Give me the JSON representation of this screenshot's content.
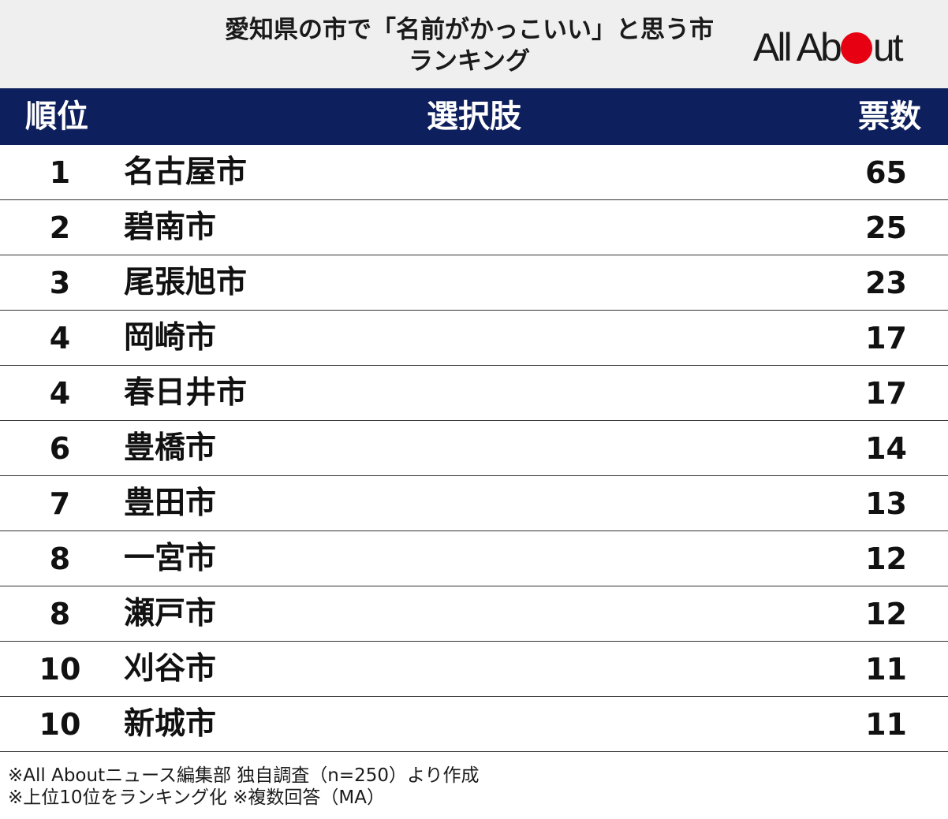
{
  "title_line1": "愛知県の市で「名前がかっこいい」と思う市",
  "title_line2": "ランキング",
  "logo": {
    "text_before": "All Ab",
    "text_after": "ut",
    "dot_color": "#e60012"
  },
  "header_color": "#0d1f5c",
  "columns": {
    "rank": "順位",
    "item": "選択肢",
    "votes": "票数"
  },
  "chart_data": {
    "type": "table",
    "title": "愛知県の市で「名前がかっこいい」と思う市ランキング",
    "headers": [
      "順位",
      "選択肢",
      "票数"
    ],
    "rows": [
      {
        "rank": "1",
        "city": "名古屋市",
        "votes": "65"
      },
      {
        "rank": "2",
        "city": "碧南市",
        "votes": "25"
      },
      {
        "rank": "3",
        "city": "尾張旭市",
        "votes": "23"
      },
      {
        "rank": "4",
        "city": "岡崎市",
        "votes": "17"
      },
      {
        "rank": "4",
        "city": "春日井市",
        "votes": "17"
      },
      {
        "rank": "6",
        "city": "豊橋市",
        "votes": "14"
      },
      {
        "rank": "7",
        "city": "豊田市",
        "votes": "13"
      },
      {
        "rank": "8",
        "city": "一宮市",
        "votes": "12"
      },
      {
        "rank": "8",
        "city": "瀬戸市",
        "votes": "12"
      },
      {
        "rank": "10",
        "city": "刈谷市",
        "votes": "11"
      },
      {
        "rank": "10",
        "city": "新城市",
        "votes": "11"
      }
    ]
  },
  "footer": {
    "line1": "※All Aboutニュース編集部 独自調査（n=250）より作成",
    "line2": "※上位10位をランキング化 ※複数回答（MA）"
  }
}
